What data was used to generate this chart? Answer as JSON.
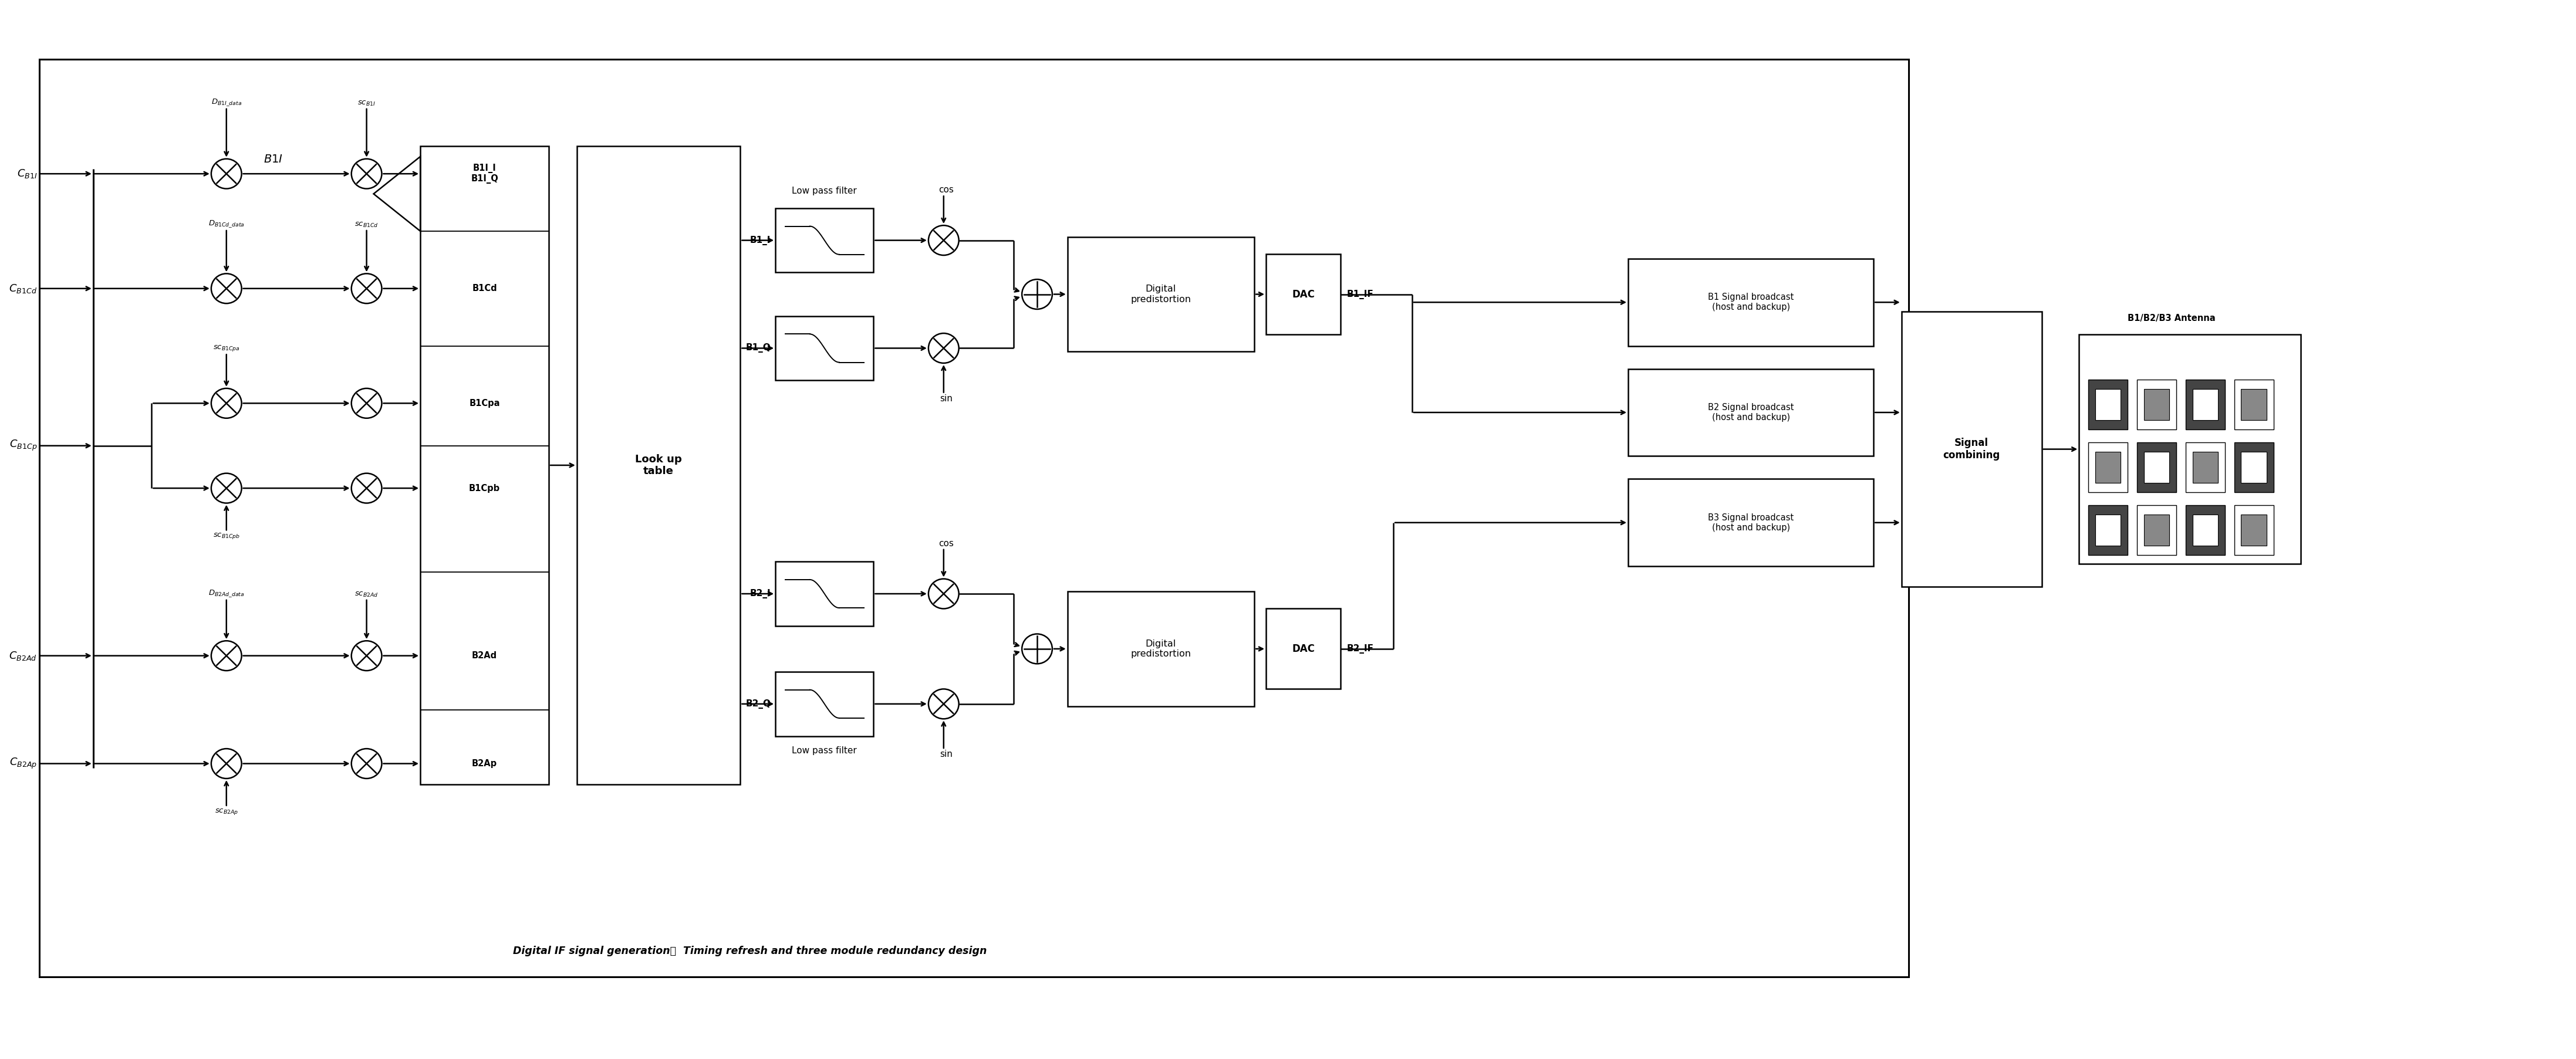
{
  "fig_width": 43.89,
  "fig_height": 18.05,
  "bg_color": "#ffffff",
  "line_color": "#000000",
  "title_text": "Digital IF signal generation：  Timing refresh and three module redundancy design",
  "lookup_table": "Look up\ntable",
  "dp_labels": [
    "Digital\npredistortion",
    "Digital\npredistortion"
  ],
  "dac_labels": [
    "DAC",
    "DAC"
  ],
  "if_labels": [
    "B1_IF",
    "B2_IF"
  ],
  "broadcast_labels": [
    "B1 Signal broadcast\n(host and backup)",
    "B2 Signal broadcast\n(host and backup)",
    "B3 Signal broadcast\n(host and backup)"
  ],
  "signal_combining": "Signal\ncombining",
  "antenna_label": "B1/B2/B3 Antenna",
  "xlim": [
    0,
    110
  ],
  "ylim": [
    0,
    46
  ]
}
